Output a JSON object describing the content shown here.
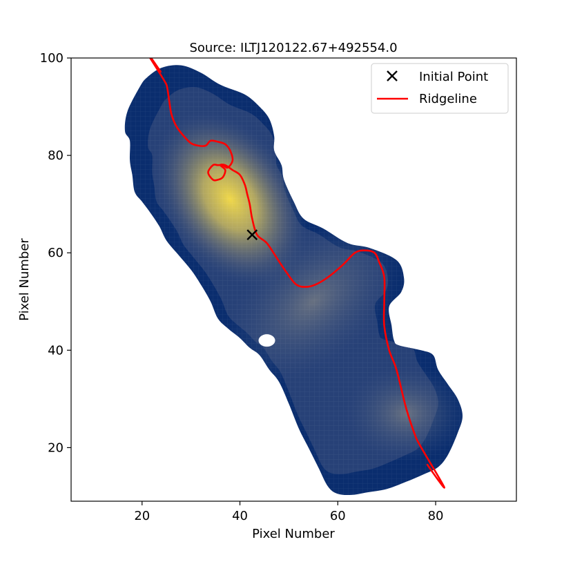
{
  "chart_data": {
    "type": "line",
    "title": "Source: ILTJ120122.67+492554.0",
    "xlabel": "Pixel Number",
    "ylabel": "Pixel Number",
    "xlim": [
      5.5,
      96.5
    ],
    "ylim": [
      9,
      100
    ],
    "xticks": [
      20,
      40,
      60,
      80
    ],
    "yticks": [
      20,
      40,
      60,
      80,
      100
    ],
    "grid": false,
    "legend_position": "top-right",
    "colors": {
      "background_low": "#0a2d6e",
      "background_mid": "#3c5382",
      "background_high": "#f0d84a",
      "ridgeline": "#ff0000",
      "marker": "#000000"
    },
    "legend": [
      {
        "label": "Initial Point",
        "marker": "x"
      },
      {
        "label": "Ridgeline",
        "marker": "line"
      }
    ],
    "source_outline": [
      [
        24,
        98
      ],
      [
        28,
        98.5
      ],
      [
        32,
        97
      ],
      [
        36,
        94.5
      ],
      [
        41,
        92.5
      ],
      [
        44,
        90
      ],
      [
        46,
        87.5
      ],
      [
        47,
        84
      ],
      [
        47,
        81
      ],
      [
        48.5,
        78
      ],
      [
        49,
        75
      ],
      [
        51,
        70.5
      ],
      [
        53,
        67
      ],
      [
        57,
        65
      ],
      [
        62,
        62
      ],
      [
        66.5,
        61
      ],
      [
        72,
        58.5
      ],
      [
        73.5,
        55
      ],
      [
        73,
        52
      ],
      [
        70.5,
        49
      ],
      [
        71,
        45
      ],
      [
        71.5,
        42
      ],
      [
        72.5,
        41
      ],
      [
        77,
        40
      ],
      [
        79.5,
        39
      ],
      [
        80.5,
        36
      ],
      [
        82.5,
        33
      ],
      [
        84.5,
        30
      ],
      [
        85.5,
        26.5
      ],
      [
        84.5,
        23
      ],
      [
        82.5,
        18.5
      ],
      [
        80.5,
        16
      ],
      [
        77.5,
        14.5
      ],
      [
        74,
        13
      ],
      [
        70,
        11.5
      ],
      [
        66,
        10.8
      ],
      [
        63,
        10.3
      ],
      [
        60,
        10.5
      ],
      [
        58,
        12
      ],
      [
        56,
        16
      ],
      [
        54,
        20
      ],
      [
        52,
        24
      ],
      [
        50,
        29
      ],
      [
        48,
        33.5
      ],
      [
        46,
        36
      ],
      [
        44,
        39
      ],
      [
        42,
        40.5
      ],
      [
        40,
        42.5
      ],
      [
        37.5,
        44.5
      ],
      [
        35.5,
        46.5
      ],
      [
        34,
        50
      ],
      [
        32,
        53.5
      ],
      [
        30,
        56.5
      ],
      [
        27.5,
        59.5
      ],
      [
        25,
        62.5
      ],
      [
        23.5,
        65.5
      ],
      [
        21.5,
        68.5
      ],
      [
        20,
        70.5
      ],
      [
        18.5,
        72.5
      ],
      [
        18,
        76
      ],
      [
        17.5,
        79
      ],
      [
        17.5,
        83
      ],
      [
        16.5,
        85
      ],
      [
        17,
        89
      ],
      [
        19.5,
        94
      ],
      [
        21,
        96
      ]
    ],
    "bright_region_center": [
      38,
      71
    ],
    "initial_point": {
      "x": 42.5,
      "y": 63.7
    },
    "ridgeline": {
      "x": [
        23.8,
        25.0,
        25.5,
        26.0,
        27.0,
        28.5,
        30.0,
        31.5,
        33.0,
        34.0,
        35.5,
        37.0,
        38.0,
        38.5,
        37.5,
        36.5,
        35.5,
        34.5,
        33.5,
        34.5,
        35.5,
        36.5,
        37.0,
        36.0,
        37.0,
        38.5,
        40.0,
        41.0,
        41.5,
        42.0,
        42.5,
        43.5,
        45.5,
        47.5,
        49.5,
        51.5,
        53.5,
        55.5,
        58.0,
        61.0,
        63.5,
        65.5,
        67.5,
        68.5,
        69.5,
        69.5,
        69.5,
        70.5,
        72.0,
        74.0,
        76.0,
        78.3
      ],
      "y": [
        97.2,
        94.5,
        91.5,
        88.5,
        86.0,
        84.0,
        82.5,
        82.0,
        82.0,
        83.0,
        82.8,
        82.3,
        81.0,
        79.0,
        77.5,
        78.0,
        78.0,
        78.0,
        76.5,
        75.0,
        75.0,
        75.5,
        77.0,
        78.0,
        78.0,
        77.0,
        76.0,
        74.0,
        72.0,
        70.0,
        67.0,
        63.7,
        62.0,
        59.0,
        56.0,
        53.5,
        53.0,
        53.5,
        55.0,
        57.5,
        60.0,
        60.5,
        60.0,
        58.0,
        55.0,
        50.0,
        45.0,
        40.0,
        36.0,
        28.0,
        22.0,
        16.5
      ]
    }
  }
}
